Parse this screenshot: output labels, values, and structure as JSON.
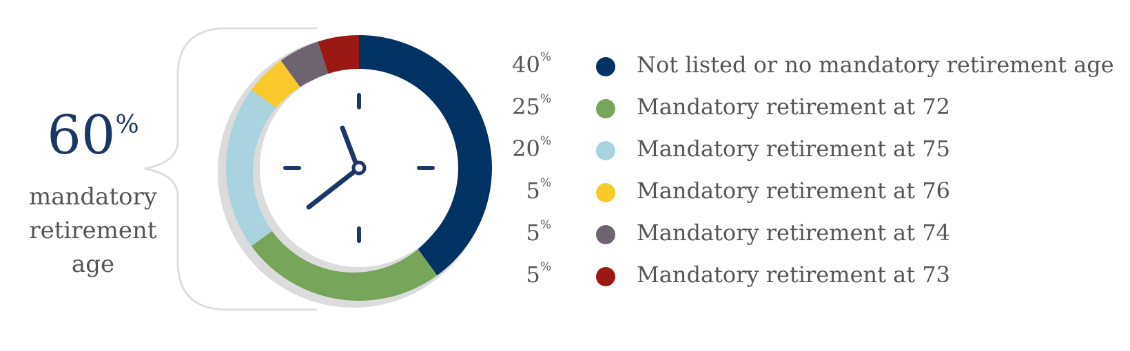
{
  "chart_data": {
    "type": "pie",
    "categories": [
      "Not listed or no mandatory retirement age",
      "Mandatory retirement at 72",
      "Mandatory retirement at 75",
      "Mandatory retirement at 76",
      "Mandatory retirement at 74",
      "Mandatory retirement at 73"
    ],
    "values": [
      40,
      25,
      20,
      5,
      5,
      5
    ],
    "value_labels": [
      "40",
      "25",
      "20",
      "5",
      "5",
      "5"
    ],
    "value_suffix": "%",
    "colors": [
      "#003263",
      "#77a55a",
      "#a8d3df",
      "#f9c92c",
      "#6d6470",
      "#9a1913"
    ],
    "legend_position": "right",
    "donut": true
  },
  "callout": {
    "value": "60",
    "suffix": "%",
    "label_lines": [
      "mandatory",
      "retirement",
      "age"
    ]
  },
  "decor": {
    "clock_icon": "clock-icon",
    "bracket_icon": "curly-brace-icon",
    "hand_color": "#1c3668",
    "shadow_color": "#dcdcdc"
  }
}
